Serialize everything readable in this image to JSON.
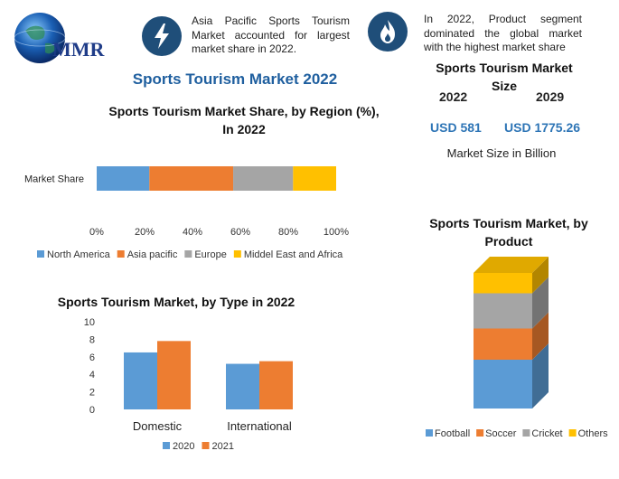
{
  "logo": {
    "text": "MMR"
  },
  "highlights": [
    {
      "icon": "lightning-icon",
      "text": "Asia Pacific Sports Tourism Market accounted for largest market share in 2022."
    },
    {
      "icon": "flame-icon",
      "text": "In 2022, Product segment dominated the global market with the highest market share"
    }
  ],
  "main_title": "Sports Tourism Market 2022",
  "market_size": {
    "title": "Sports Tourism Market Size",
    "year1": "2022",
    "year2": "2029",
    "value1": "USD 581",
    "value2": "USD 1775.26",
    "note": "Market Size in Billion"
  },
  "colors": {
    "blue": "#5b9bd5",
    "orange": "#ed7d31",
    "gray": "#a5a5a5",
    "yellow": "#ffc000",
    "dark_blue": "#1f4e79",
    "title_blue": "#1f5f9f"
  },
  "chart_data": [
    {
      "type": "bar",
      "orientation": "horizontal-stacked",
      "title": "Sports Tourism Market Share, by Region (%), In 2022",
      "categories": [
        "Market Share"
      ],
      "series": [
        {
          "name": "North America",
          "values": [
            22
          ]
        },
        {
          "name": "Asia pacific",
          "values": [
            35
          ]
        },
        {
          "name": "Europe",
          "values": [
            25
          ]
        },
        {
          "name": "Middel East and Africa",
          "values": [
            18
          ]
        }
      ],
      "xlim": [
        0,
        100
      ],
      "xticks": [
        "0%",
        "20%",
        "40%",
        "60%",
        "80%",
        "100%"
      ],
      "legend": "bottom",
      "grid": false
    },
    {
      "type": "bar",
      "title": "Sports Tourism Market, by Type in 2022",
      "categories": [
        "Domestic",
        "International"
      ],
      "series": [
        {
          "name": "2020",
          "values": [
            6.5,
            5.2
          ]
        },
        {
          "name": "2021",
          "values": [
            7.8,
            5.5
          ]
        }
      ],
      "ylim": [
        0,
        10
      ],
      "yticks": [
        "0",
        "2",
        "4",
        "6",
        "8",
        "10"
      ],
      "legend": "bottom",
      "grid": false
    },
    {
      "type": "bar",
      "orientation": "vertical-stacked-3d",
      "title": "Sports Tourism Market, by Product",
      "categories": [
        ""
      ],
      "series": [
        {
          "name": "Football",
          "values": [
            36
          ]
        },
        {
          "name": "Soccer",
          "values": [
            23
          ]
        },
        {
          "name": "Cricket",
          "values": [
            26
          ]
        },
        {
          "name": "Others",
          "values": [
            15
          ]
        }
      ],
      "ylim": [
        0,
        100
      ],
      "legend": "bottom",
      "grid": false
    }
  ]
}
